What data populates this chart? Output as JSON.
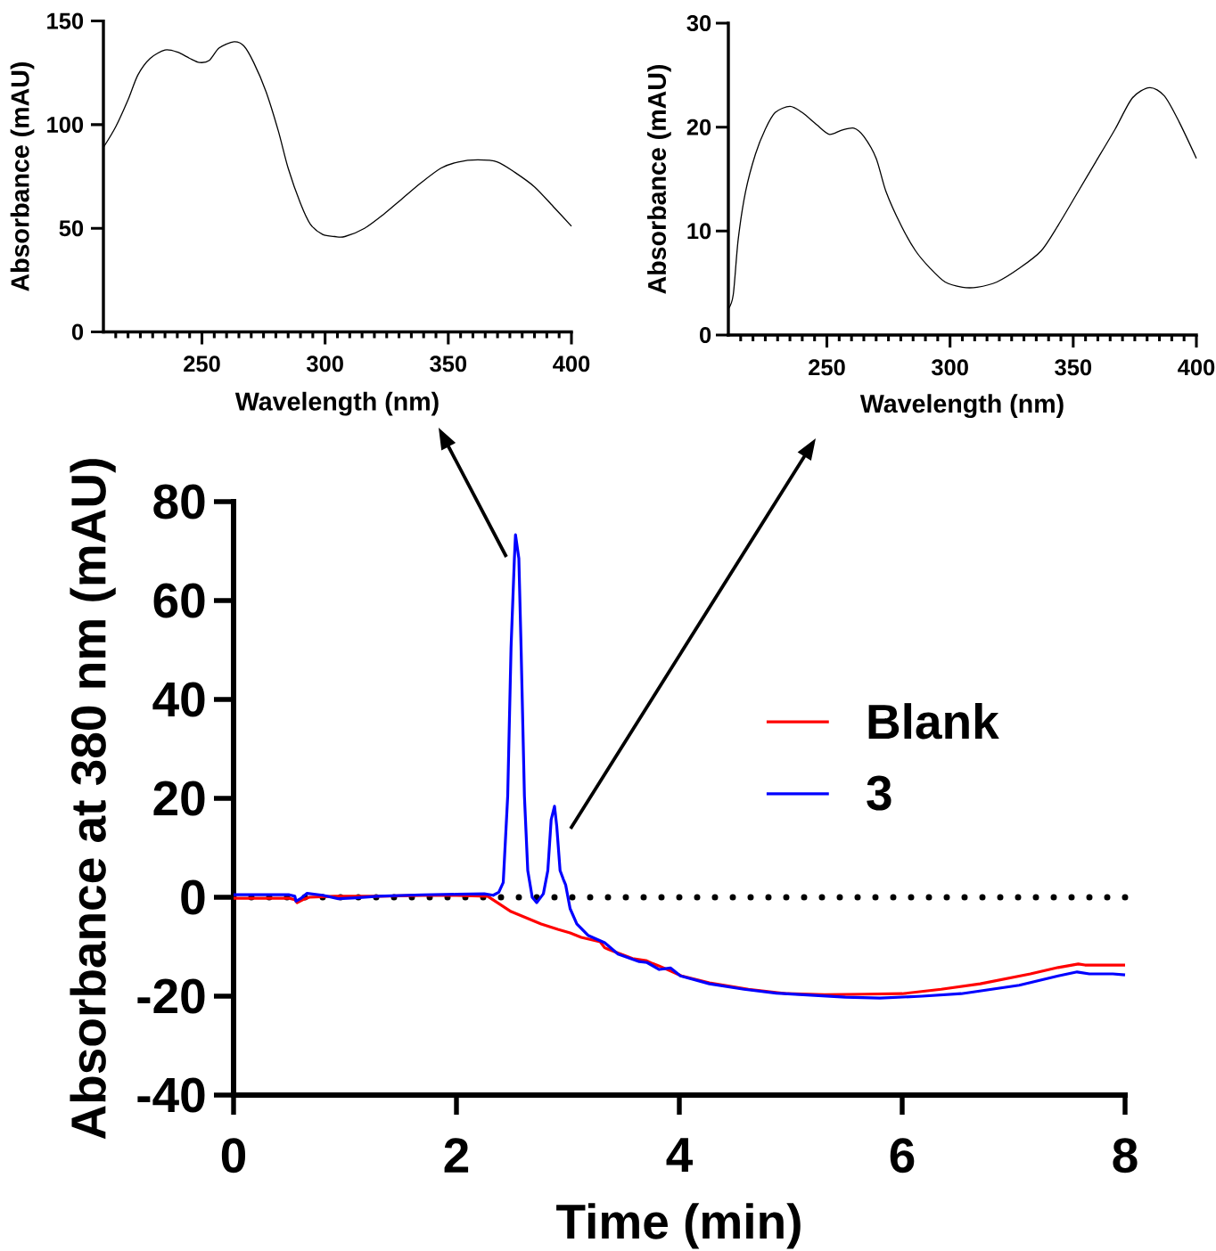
{
  "chart_data": [
    {
      "type": "line",
      "xlabel": "Wavelength (nm)",
      "ylabel": "Absorbance (mAU)",
      "color": "#000000",
      "x": [
        210,
        215,
        220,
        224,
        229,
        235,
        240,
        245,
        249,
        253,
        257,
        263,
        267,
        271,
        276,
        281,
        285,
        290,
        294,
        299,
        304,
        308,
        316,
        324,
        331,
        339,
        347,
        354,
        362,
        370,
        377,
        385,
        393,
        400
      ],
      "values": [
        89,
        99,
        112,
        124,
        132,
        136,
        135,
        132,
        130,
        131,
        137,
        140,
        138,
        130,
        116,
        97,
        79,
        62,
        52,
        47,
        46,
        46,
        50,
        57,
        64,
        72,
        79,
        82,
        83,
        82,
        77,
        70,
        60,
        51
      ],
      "xlim": [
        210,
        400
      ],
      "xticks": [
        {
          "value": 215,
          "label": null
        },
        {
          "value": 220,
          "label": null
        },
        {
          "value": 225,
          "label": null
        },
        {
          "value": 230,
          "label": null
        },
        {
          "value": 235,
          "label": null
        },
        {
          "value": 240,
          "label": null
        },
        {
          "value": 245,
          "label": null
        },
        250,
        {
          "value": 255,
          "label": null
        },
        {
          "value": 260,
          "label": null
        },
        {
          "value": 265,
          "label": null
        },
        {
          "value": 270,
          "label": null
        },
        {
          "value": 275,
          "label": null
        },
        {
          "value": 280,
          "label": null
        },
        {
          "value": 285,
          "label": null
        },
        {
          "value": 290,
          "label": null
        },
        {
          "value": 295,
          "label": null
        },
        300,
        {
          "value": 305,
          "label": null
        },
        {
          "value": 310,
          "label": null
        },
        {
          "value": 315,
          "label": null
        },
        {
          "value": 320,
          "label": null
        },
        {
          "value": 325,
          "label": null
        },
        {
          "value": 330,
          "label": null
        },
        {
          "value": 335,
          "label": null
        },
        {
          "value": 340,
          "label": null
        },
        {
          "value": 345,
          "label": null
        },
        350,
        {
          "value": 355,
          "label": null
        },
        {
          "value": 360,
          "label": null
        },
        {
          "value": 365,
          "label": null
        },
        {
          "value": 370,
          "label": null
        },
        {
          "value": 375,
          "label": null
        },
        {
          "value": 380,
          "label": null
        },
        {
          "value": 385,
          "label": null
        },
        {
          "value": 390,
          "label": null
        },
        {
          "value": 395,
          "label": null
        },
        400
      ],
      "ylim": [
        0,
        150
      ],
      "yticks": [
        0,
        50,
        100,
        150
      ]
    },
    {
      "type": "line",
      "xlabel": "Wavelength (nm)",
      "ylabel": "Absorbance (mAU)",
      "color": "#000000",
      "x": [
        210,
        212,
        214,
        217,
        221,
        225,
        229,
        235,
        240,
        246,
        251,
        256,
        261,
        265,
        270,
        274,
        280,
        286,
        292,
        298,
        305,
        311,
        319,
        328,
        337,
        344,
        352,
        359,
        367,
        374,
        381,
        387,
        393,
        400
      ],
      "values": [
        2.5,
        3.9,
        9.2,
        13.8,
        17.4,
        19.8,
        21.4,
        22.0,
        21.4,
        20.2,
        19.3,
        19.7,
        19.9,
        19.1,
        17.0,
        13.8,
        10.6,
        8.1,
        6.4,
        5.1,
        4.6,
        4.6,
        5.1,
        6.4,
        8.1,
        10.6,
        13.8,
        16.6,
        19.8,
        22.8,
        23.8,
        23.0,
        20.5,
        17.0
      ],
      "xlim": [
        210,
        400
      ],
      "xticks": [
        {
          "value": 215,
          "label": null
        },
        {
          "value": 220,
          "label": null
        },
        {
          "value": 225,
          "label": null
        },
        {
          "value": 230,
          "label": null
        },
        {
          "value": 235,
          "label": null
        },
        {
          "value": 240,
          "label": null
        },
        {
          "value": 245,
          "label": null
        },
        250,
        {
          "value": 255,
          "label": null
        },
        {
          "value": 260,
          "label": null
        },
        {
          "value": 265,
          "label": null
        },
        {
          "value": 270,
          "label": null
        },
        {
          "value": 275,
          "label": null
        },
        {
          "value": 280,
          "label": null
        },
        {
          "value": 285,
          "label": null
        },
        {
          "value": 290,
          "label": null
        },
        {
          "value": 295,
          "label": null
        },
        300,
        {
          "value": 305,
          "label": null
        },
        {
          "value": 310,
          "label": null
        },
        {
          "value": 315,
          "label": null
        },
        {
          "value": 320,
          "label": null
        },
        {
          "value": 325,
          "label": null
        },
        {
          "value": 330,
          "label": null
        },
        {
          "value": 335,
          "label": null
        },
        {
          "value": 340,
          "label": null
        },
        {
          "value": 345,
          "label": null
        },
        350,
        {
          "value": 355,
          "label": null
        },
        {
          "value": 360,
          "label": null
        },
        {
          "value": 365,
          "label": null
        },
        {
          "value": 370,
          "label": null
        },
        {
          "value": 375,
          "label": null
        },
        {
          "value": 380,
          "label": null
        },
        {
          "value": 385,
          "label": null
        },
        {
          "value": 390,
          "label": null
        },
        {
          "value": 395,
          "label": null
        },
        400
      ],
      "ylim": [
        0,
        30
      ],
      "yticks": [
        0,
        10,
        20,
        30
      ]
    },
    {
      "type": "line",
      "xlabel": "Time (min)",
      "ylabel": "Absorbance at 380 nm (mAU)",
      "series": [
        {
          "name": "Blank",
          "color": "#ff0000",
          "x": [
            0,
            0.5,
            0.55,
            0.57,
            0.62,
            0.68,
            0.9,
            1.3,
            1.7,
            2.0,
            2.28,
            2.49,
            2.62,
            2.76,
            2.91,
            3.02,
            3.12,
            3.29,
            3.33,
            3.37,
            3.58,
            3.7,
            3.76,
            3.82,
            4.02,
            4.27,
            4.62,
            4.97,
            5.3,
            5.66,
            6.0,
            6.35,
            6.7,
            7.15,
            7.4,
            7.58,
            7.64,
            8.0
          ],
          "values": [
            -0.2,
            -0.2,
            -0.5,
            -1.1,
            -0.5,
            0.0,
            0.2,
            0.2,
            0.4,
            0.4,
            0.2,
            -2.9,
            -4.1,
            -5.4,
            -6.5,
            -7.2,
            -8.1,
            -9.0,
            -10.2,
            -10.6,
            -12.4,
            -12.8,
            -13.4,
            -13.9,
            -15.9,
            -17.3,
            -18.6,
            -19.5,
            -19.7,
            -19.6,
            -19.5,
            -18.6,
            -17.5,
            -15.5,
            -14.2,
            -13.5,
            -13.7,
            -13.7
          ]
        },
        {
          "name": "3",
          "color": "#0000ff",
          "x": [
            0,
            0.5,
            0.55,
            0.56,
            0.6,
            0.66,
            0.8,
            0.94,
            1.1,
            1.29,
            1.69,
            2.0,
            2.25,
            2.33,
            2.38,
            2.42,
            2.46,
            2.49,
            2.52,
            2.53,
            2.56,
            2.58,
            2.61,
            2.64,
            2.68,
            2.72,
            2.78,
            2.82,
            2.85,
            2.88,
            2.9,
            2.93,
            2.96,
            2.98,
            3.02,
            3.08,
            3.18,
            3.33,
            3.45,
            3.64,
            3.71,
            3.82,
            3.92,
            4.01,
            4.27,
            4.58,
            4.87,
            5.49,
            5.8,
            6.18,
            6.53,
            7.05,
            7.4,
            7.57,
            7.68,
            7.89,
            8.0
          ],
          "values": [
            0.5,
            0.5,
            0.2,
            -0.8,
            -0.3,
            0.8,
            0.4,
            -0.3,
            -0.1,
            0.2,
            0.5,
            0.6,
            0.7,
            0.4,
            1.0,
            3.0,
            20.5,
            50.5,
            68.5,
            73.3,
            68.5,
            50.5,
            20.5,
            5.4,
            0.0,
            -1.1,
            0.7,
            5.4,
            15.7,
            18.4,
            14.4,
            5.4,
            3.6,
            2.5,
            -2.3,
            -5.4,
            -7.7,
            -9.2,
            -11.5,
            -13.0,
            -13.2,
            -14.6,
            -14.3,
            -15.9,
            -17.5,
            -18.6,
            -19.4,
            -20.2,
            -20.4,
            -20.0,
            -19.5,
            -17.8,
            -15.9,
            -15.1,
            -15.5,
            -15.5,
            -15.7
          ]
        }
      ],
      "xlim": [
        0,
        8
      ],
      "xticks": [
        0,
        2,
        4,
        6,
        8
      ],
      "ylim": [
        -40,
        80
      ],
      "yticks": [
        -40,
        -20,
        0,
        20,
        40,
        60,
        80
      ],
      "ref_lines": [
        {
          "axis": "y",
          "value": 0,
          "line_style": "dotted",
          "color": "#000000"
        }
      ],
      "legend": "right"
    }
  ]
}
